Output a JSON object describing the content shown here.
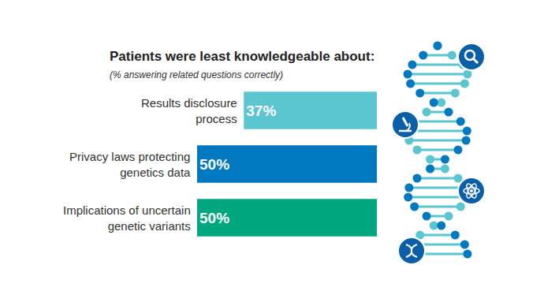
{
  "chart_data": {
    "type": "bar",
    "orientation": "horizontal",
    "title": "Patients were least knowledgeable about:",
    "subtitle": "(% answering related questions correctly)",
    "categories": [
      "Results disclosure process",
      "Privacy laws protecting genetics data",
      "Implications of uncertain genetic variants"
    ],
    "values": [
      37,
      50,
      50
    ],
    "value_labels": [
      "37%",
      "50%",
      "50%"
    ],
    "colors": [
      "#5bc6d0",
      "#0079c1",
      "#00a67e"
    ],
    "xlim": [
      0,
      50
    ],
    "data_labels": true,
    "tick_labels": false,
    "grid": false
  }
}
